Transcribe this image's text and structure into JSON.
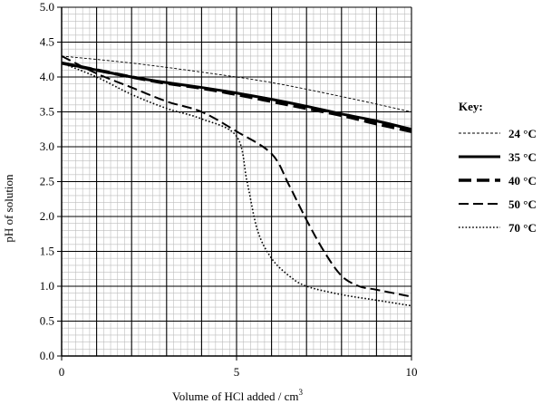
{
  "chart_data": {
    "type": "line",
    "title": "",
    "xlabel": "Volume of HCl added / cm",
    "xlabel_superscript": "3",
    "ylabel": "pH of solution",
    "xlim": [
      0,
      10
    ],
    "ylim": [
      0.0,
      5.0
    ],
    "x_ticks": [
      0,
      5,
      10
    ],
    "x_tick_labels": [
      "0",
      "5",
      "10"
    ],
    "y_ticks": [
      0.0,
      0.5,
      1.0,
      1.5,
      2.0,
      2.5,
      3.0,
      3.5,
      4.0,
      4.5,
      5.0
    ],
    "y_tick_labels": [
      "0.0",
      "0.5",
      "1.0",
      "1.5",
      "2.0",
      "2.5",
      "3.0",
      "3.5",
      "4.0",
      "4.5",
      "5.0"
    ],
    "grid": {
      "major_x": 1,
      "major_y": 0.5,
      "minor_x": 0.2,
      "minor_y": 0.1
    },
    "legend": {
      "title": "Key:",
      "placement": "right"
    },
    "series": [
      {
        "name": "24 °C",
        "style": "fine-dash",
        "color": "#000000",
        "x": [
          0,
          2,
          4,
          6,
          8,
          10
        ],
        "y": [
          4.3,
          4.2,
          4.07,
          3.92,
          3.72,
          3.5
        ]
      },
      {
        "name": "35 °C",
        "style": "solid",
        "color": "#000000",
        "x": [
          0,
          1,
          2,
          3,
          4,
          5,
          6,
          7,
          8,
          9,
          10
        ],
        "y": [
          4.2,
          4.1,
          4.0,
          3.92,
          3.85,
          3.77,
          3.68,
          3.58,
          3.47,
          3.37,
          3.25
        ]
      },
      {
        "name": "40 °C",
        "style": "long-dash",
        "color": "#000000",
        "x": [
          0,
          1,
          2,
          3,
          4,
          5,
          6,
          7,
          8,
          9,
          10
        ],
        "y": [
          4.2,
          4.1,
          4.0,
          3.91,
          3.84,
          3.75,
          3.65,
          3.55,
          3.45,
          3.33,
          3.22
        ]
      },
      {
        "name": "50 °C",
        "style": "dash",
        "color": "#000000",
        "x": [
          0,
          1,
          2,
          3,
          4,
          5,
          6,
          6.5,
          7,
          7.5,
          8,
          8.5,
          9,
          10
        ],
        "y": [
          4.3,
          4.05,
          3.85,
          3.65,
          3.5,
          3.22,
          2.9,
          2.45,
          1.95,
          1.5,
          1.15,
          1.0,
          0.95,
          0.85
        ]
      },
      {
        "name": "70 °C",
        "style": "dotted",
        "color": "#000000",
        "x": [
          0,
          1,
          2,
          3,
          4,
          5,
          5.3,
          5.6,
          6,
          6.5,
          7,
          8,
          9,
          10
        ],
        "y": [
          4.2,
          4.0,
          3.75,
          3.55,
          3.4,
          3.15,
          2.5,
          1.8,
          1.4,
          1.15,
          1.0,
          0.88,
          0.8,
          0.72
        ]
      }
    ]
  }
}
